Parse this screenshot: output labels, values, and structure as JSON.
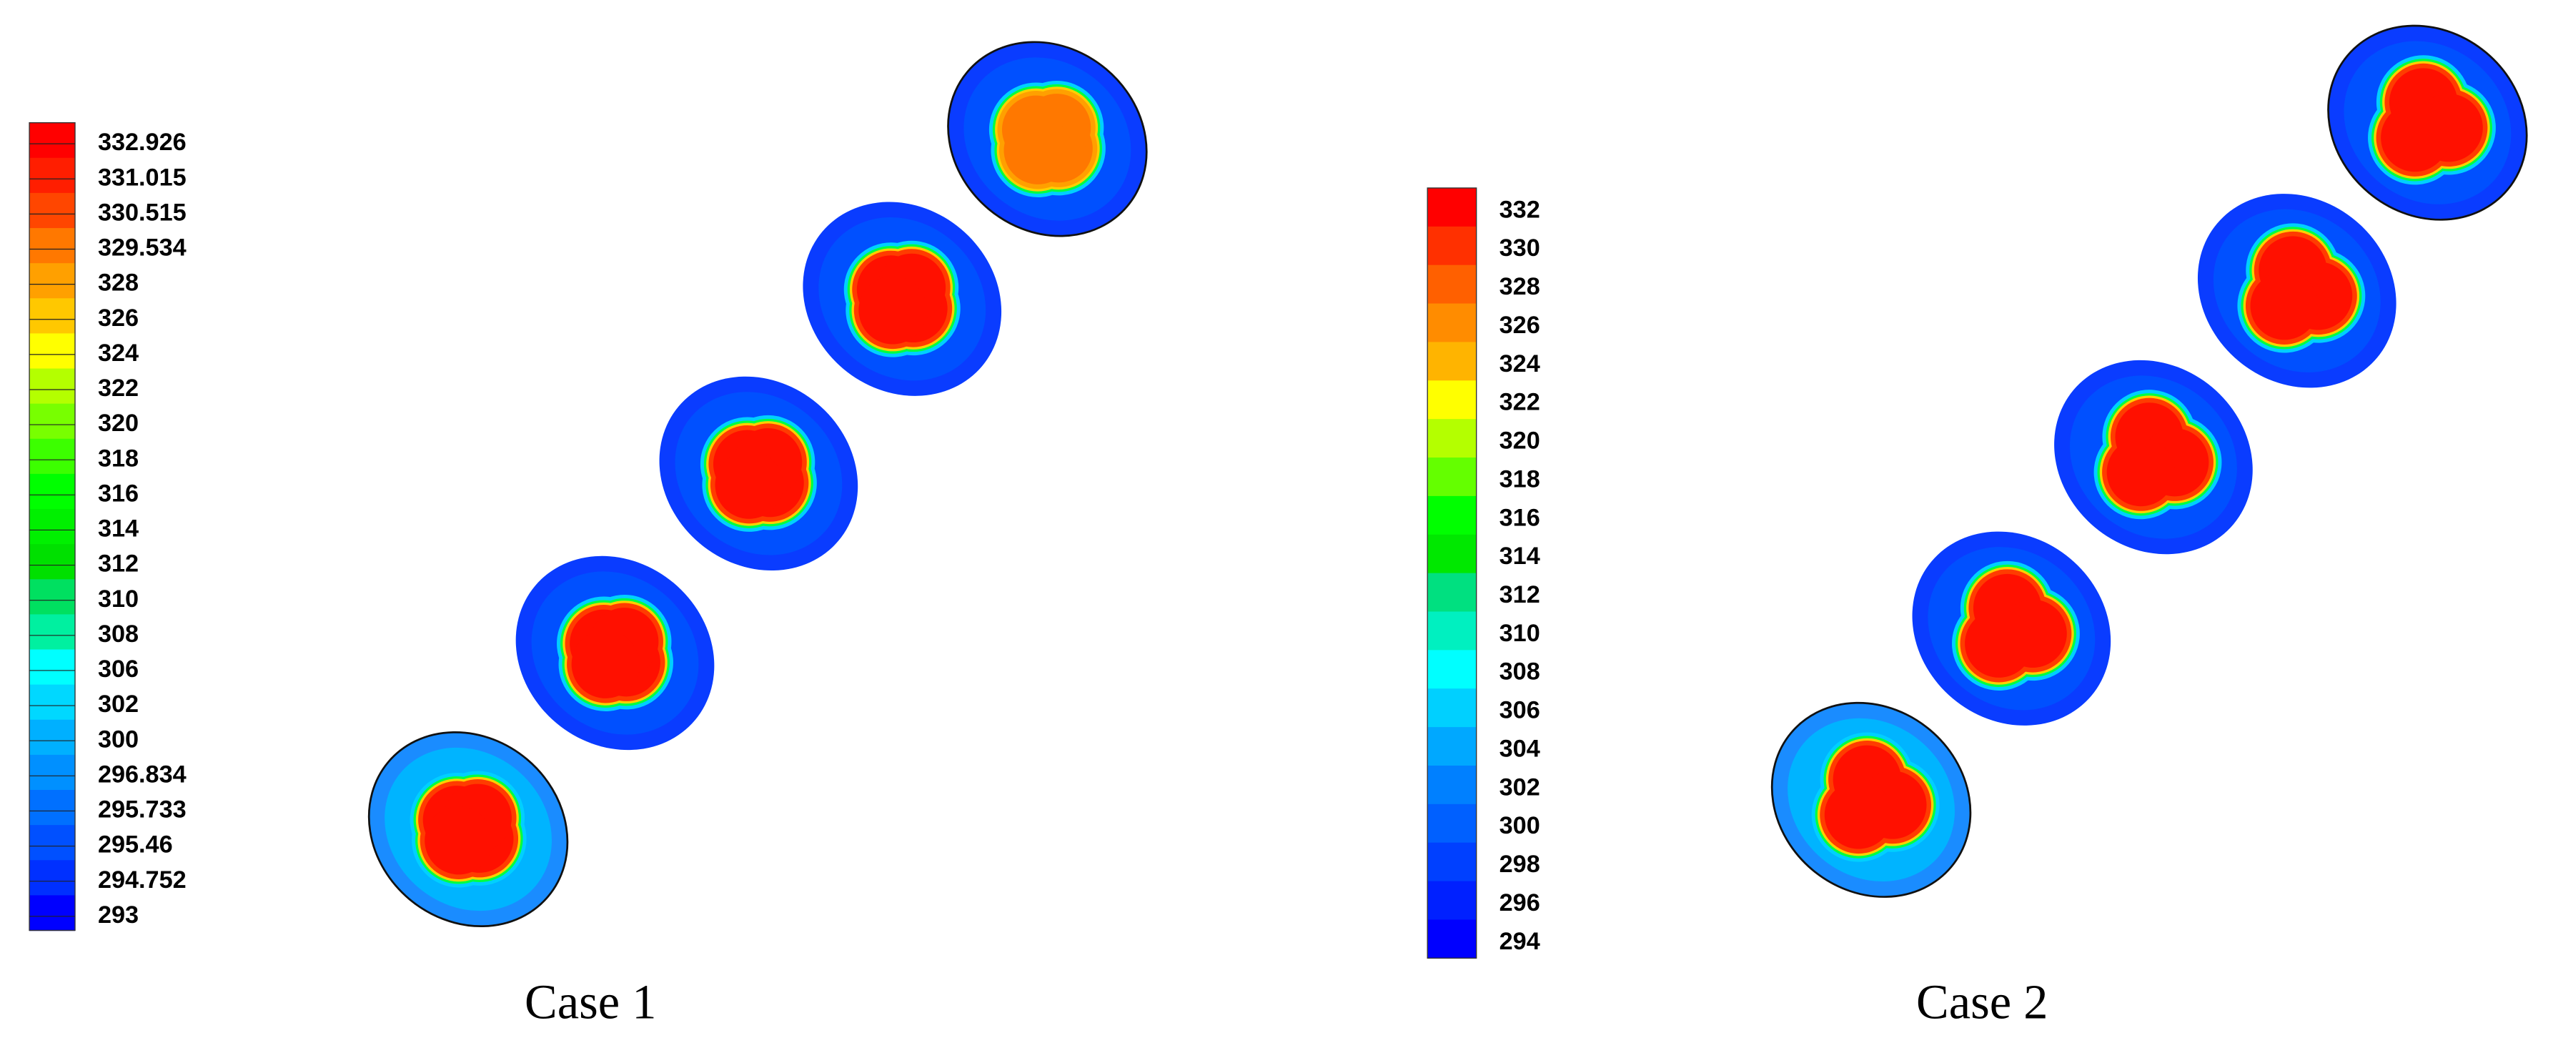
{
  "panels": [
    {
      "colorbar": {
        "labels": [
          "332.926",
          "331.015",
          "330.515",
          "329.534",
          "328",
          "326",
          "324",
          "322",
          "320",
          "318",
          "316",
          "314",
          "312",
          "310",
          "308",
          "306",
          "302",
          "300",
          "296.834",
          "295.733",
          "295.46",
          "294.752",
          "293"
        ],
        "colors": [
          "#ff0000",
          "#ff1e00",
          "#ff4600",
          "#ff7800",
          "#ffa000",
          "#ffc800",
          "#ffff00",
          "#b4ff00",
          "#78ff00",
          "#3cff00",
          "#00ff00",
          "#00f000",
          "#00e000",
          "#00e060",
          "#00f0a0",
          "#00ffff",
          "#00d8ff",
          "#00b0ff",
          "#0090ff",
          "#0070ff",
          "#0050ff",
          "#0030ff",
          "#0000ff"
        ]
      },
      "caption": "Case 1"
    },
    {
      "colorbar": {
        "labels": [
          "332",
          "330",
          "328",
          "326",
          "324",
          "322",
          "320",
          "318",
          "316",
          "314",
          "312",
          "310",
          "308",
          "306",
          "304",
          "302",
          "300",
          "298",
          "296",
          "294"
        ],
        "colors": [
          "#ff0000",
          "#ff3000",
          "#ff6000",
          "#ff8c00",
          "#ffb400",
          "#ffff00",
          "#b4ff00",
          "#64ff00",
          "#00ff00",
          "#00e800",
          "#00e080",
          "#00f0c0",
          "#00ffff",
          "#00d0ff",
          "#00a8ff",
          "#0080ff",
          "#0060ff",
          "#0040ff",
          "#0020ff",
          "#0000ff"
        ]
      },
      "caption": "Case 2"
    }
  ]
}
